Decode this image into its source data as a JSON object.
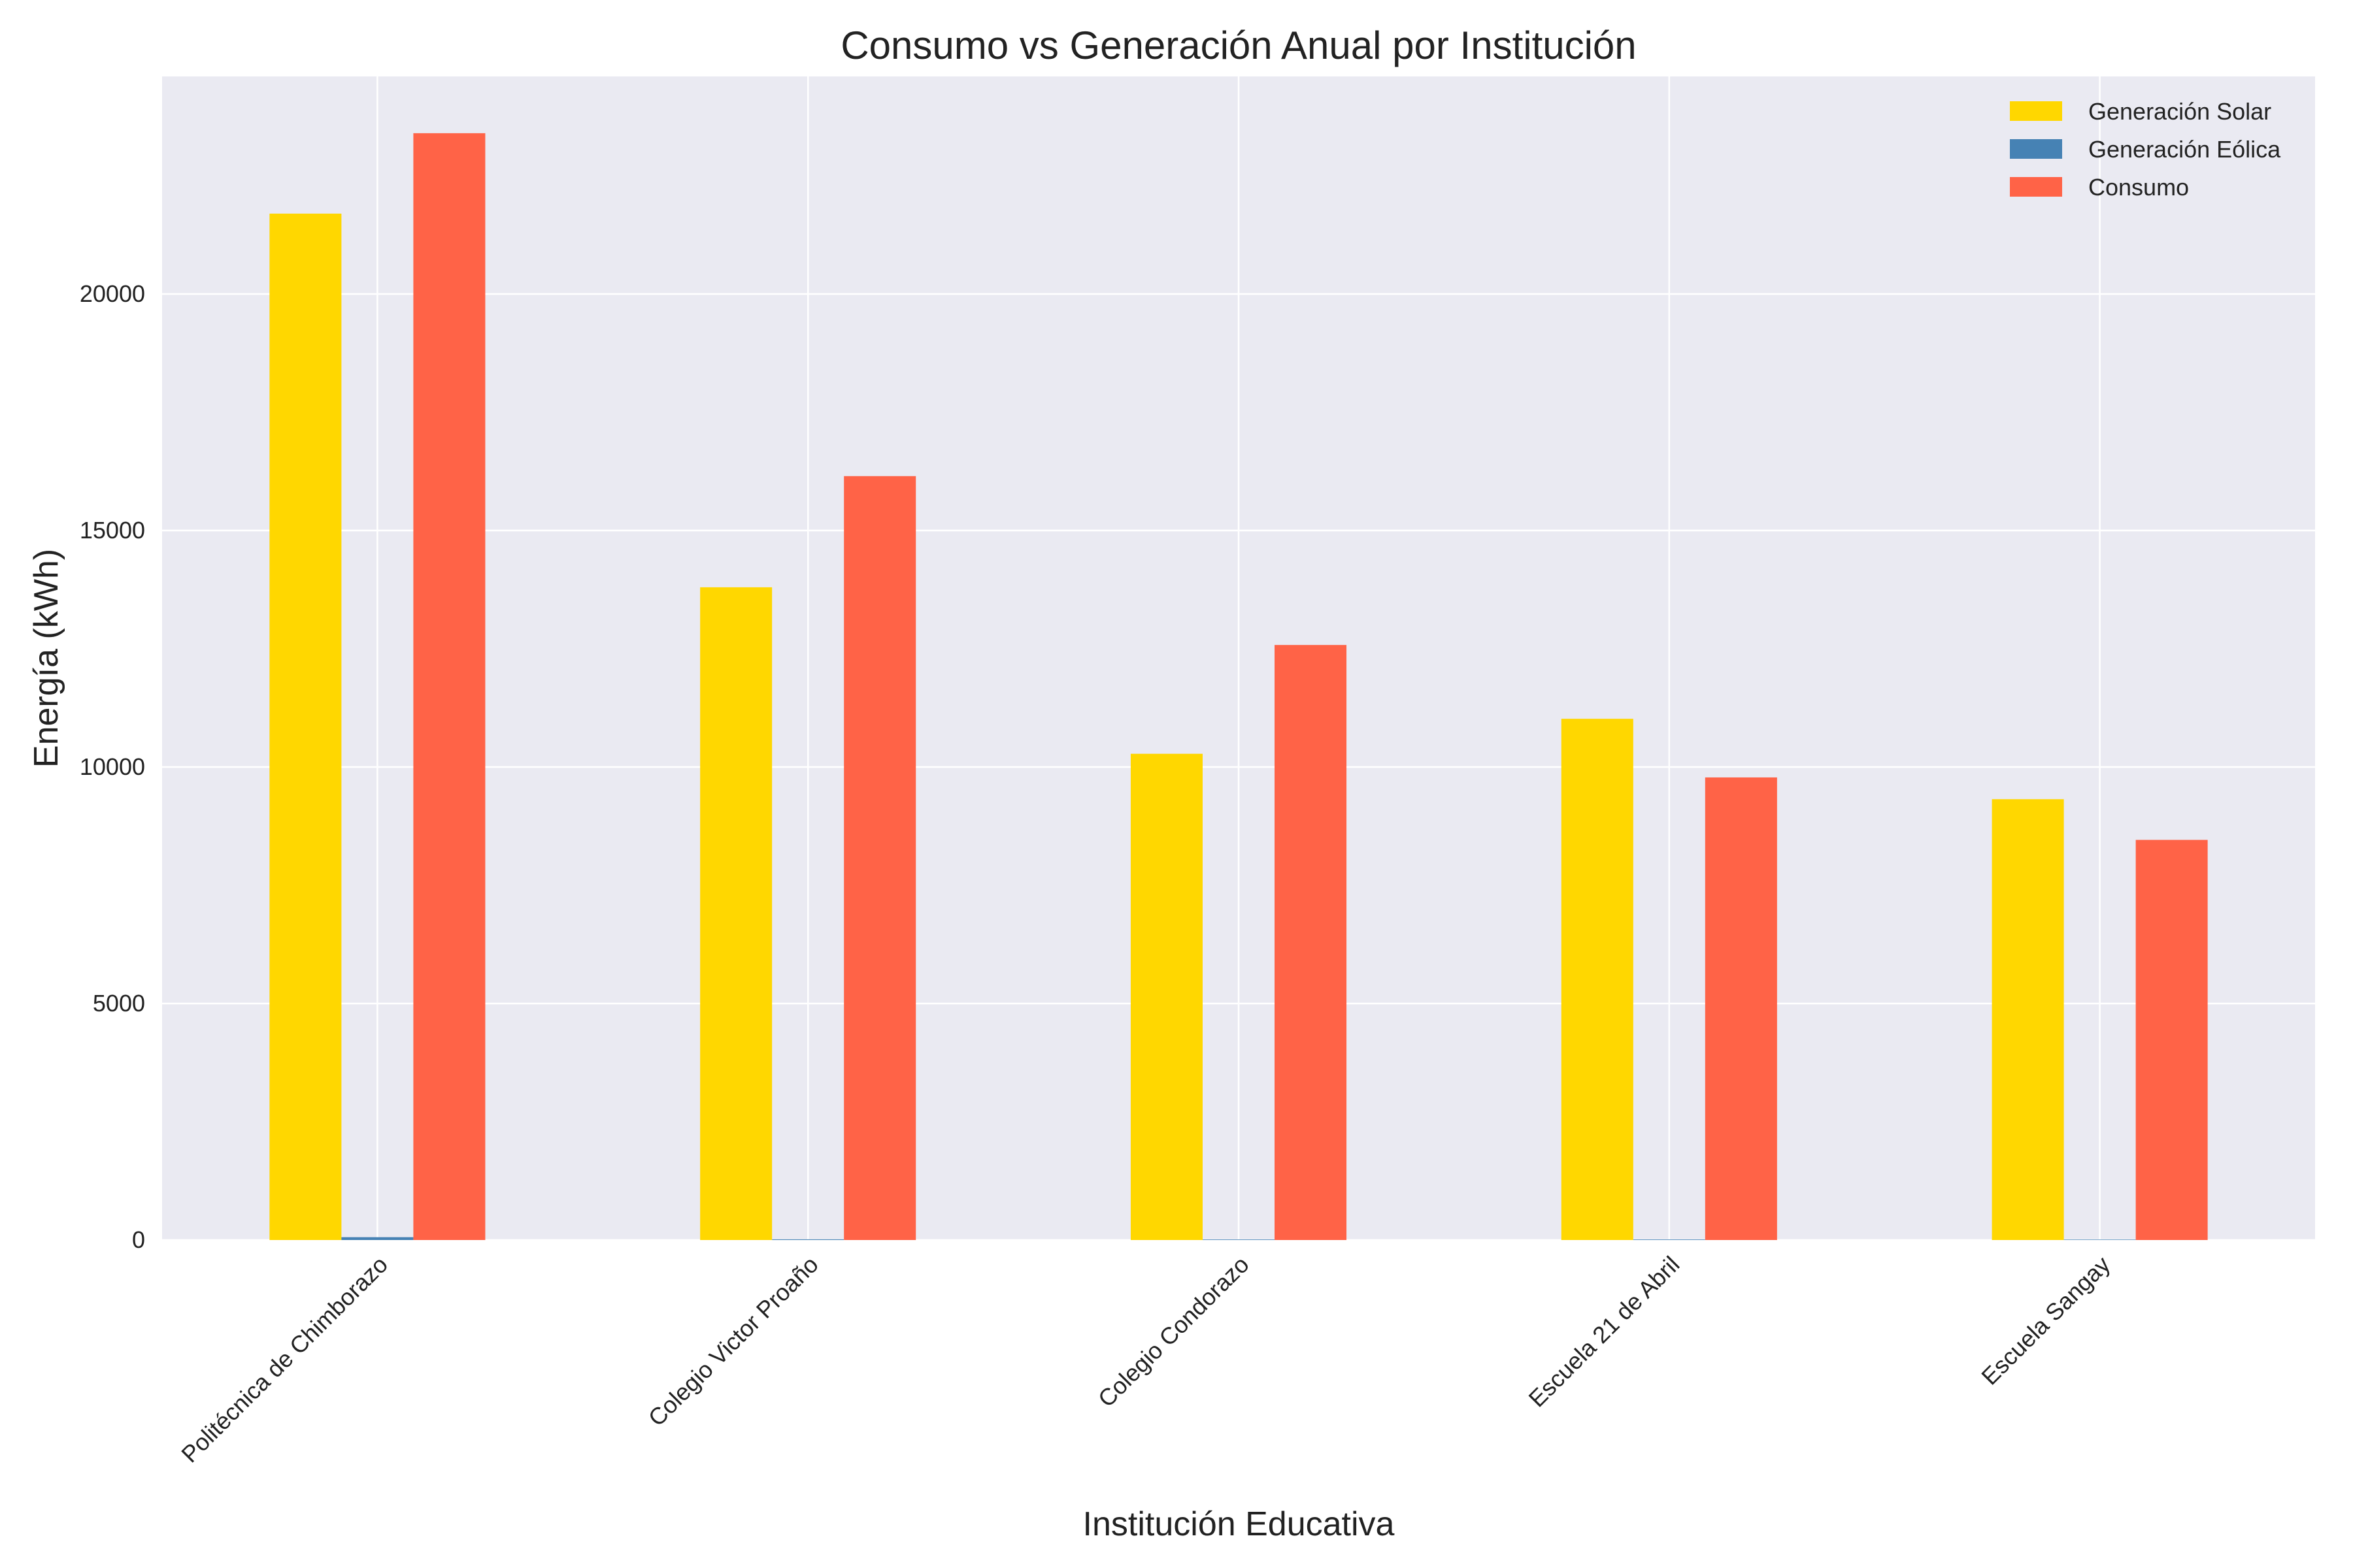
{
  "chart_data": {
    "type": "bar",
    "title": "Consumo vs Generación Anual por Institución",
    "xlabel": "Institución Educativa",
    "ylabel": "Energía (kWh)",
    "categories": [
      "Politécnica de Chimborazo",
      "Colegio Victor Proaño",
      "Colegio Condorazo",
      "Escuela 21 de Abril",
      "Escuela Sangay"
    ],
    "series": [
      {
        "name": "Generación Solar",
        "color": "#FFD700",
        "values": [
          21700,
          13800,
          10280,
          11020,
          9320
        ]
      },
      {
        "name": "Generación Eólica",
        "color": "#4682B4",
        "values": [
          60,
          15,
          12,
          12,
          10
        ]
      },
      {
        "name": "Consumo",
        "color": "#FF6347",
        "values": [
          23400,
          16150,
          12580,
          9780,
          8460
        ]
      }
    ],
    "ylim": [
      0,
      24600
    ],
    "yticks": [
      0,
      5000,
      10000,
      15000,
      20000
    ],
    "grid": true,
    "legend_position": "top-right",
    "background_color": "#EAEAF2"
  }
}
